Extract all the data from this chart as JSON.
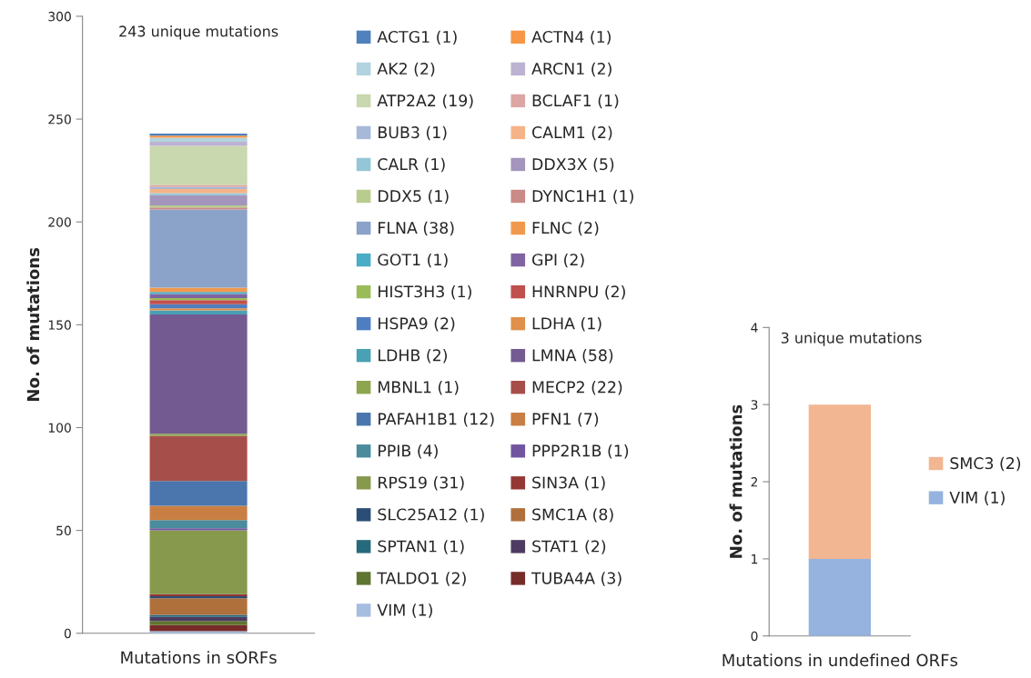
{
  "chart_data": [
    {
      "type": "bar",
      "stacked": true,
      "categories": [
        "Mutations in sORFs"
      ],
      "ylabel": "No. of mutations",
      "ylim": [
        0,
        300
      ],
      "yticks": [
        0,
        50,
        100,
        150,
        200,
        250,
        300
      ],
      "grid": false,
      "legend": "right",
      "annotations": [
        "243 unique mutations"
      ],
      "series": [
        {
          "name": "VIM (1)",
          "color": "#a6bde0",
          "values": [
            1
          ]
        },
        {
          "name": "TUBA4A (3)",
          "color": "#772c2a",
          "values": [
            3
          ]
        },
        {
          "name": "TALDO1 (2)",
          "color": "#5f7530",
          "values": [
            2
          ]
        },
        {
          "name": "STAT1 (2)",
          "color": "#4d3b62",
          "values": [
            2
          ]
        },
        {
          "name": "SPTAN1 (1)",
          "color": "#276a7c",
          "values": [
            1
          ]
        },
        {
          "name": "SMC1A (8)",
          "color": "#b0703c",
          "values": [
            8
          ]
        },
        {
          "name": "SLC25A12 (1)",
          "color": "#2c4d75",
          "values": [
            1
          ]
        },
        {
          "name": "SIN3A (1)",
          "color": "#953735",
          "values": [
            1
          ]
        },
        {
          "name": "RPS19 (31)",
          "color": "#86994c",
          "values": [
            31
          ]
        },
        {
          "name": "PPP2R1B (1)",
          "color": "#7155a0",
          "values": [
            1
          ]
        },
        {
          "name": "PPIB (4)",
          "color": "#4a8b9c",
          "values": [
            4
          ]
        },
        {
          "name": "PFN1 (7)",
          "color": "#c97f44",
          "values": [
            7
          ]
        },
        {
          "name": "PAFAH1B1 (12)",
          "color": "#4a76ad",
          "values": [
            12
          ]
        },
        {
          "name": "MECP2 (22)",
          "color": "#a64e49",
          "values": [
            22
          ]
        },
        {
          "name": "MBNL1 (1)",
          "color": "#8da64e",
          "values": [
            1
          ]
        },
        {
          "name": "LMNA (58)",
          "color": "#735b91",
          "values": [
            58
          ]
        },
        {
          "name": "LDHB (2)",
          "color": "#4aa0b5",
          "values": [
            2
          ]
        },
        {
          "name": "LDHA (1)",
          "color": "#e0904a",
          "values": [
            1
          ]
        },
        {
          "name": "HSPA9 (2)",
          "color": "#4f7ec0",
          "values": [
            2
          ]
        },
        {
          "name": "HNRNPU (2)",
          "color": "#c0504d",
          "values": [
            2
          ]
        },
        {
          "name": "HIST3H3 (1)",
          "color": "#9bbb59",
          "values": [
            1
          ]
        },
        {
          "name": "GPI (2)",
          "color": "#8064a2",
          "values": [
            2
          ]
        },
        {
          "name": "GOT1 (1)",
          "color": "#4bacc6",
          "values": [
            1
          ]
        },
        {
          "name": "FLNC (2)",
          "color": "#f0994e",
          "values": [
            2
          ]
        },
        {
          "name": "FLNA (38)",
          "color": "#8ba2c9",
          "values": [
            38
          ]
        },
        {
          "name": "DYNC1H1 (1)",
          "color": "#c98a88",
          "values": [
            1
          ]
        },
        {
          "name": "DDX5 (1)",
          "color": "#b8cc8e",
          "values": [
            1
          ]
        },
        {
          "name": "DDX3X (5)",
          "color": "#a395bb",
          "values": [
            5
          ]
        },
        {
          "name": "CALR (1)",
          "color": "#93c6d6",
          "values": [
            1
          ]
        },
        {
          "name": "CALM1 (2)",
          "color": "#f5b487",
          "values": [
            2
          ]
        },
        {
          "name": "BUB3 (1)",
          "color": "#a8b8d8",
          "values": [
            1
          ]
        },
        {
          "name": "BCLAF1 (1)",
          "color": "#dba6a4",
          "values": [
            1
          ]
        },
        {
          "name": "ATP2A2 (19)",
          "color": "#c9d8ae",
          "values": [
            19
          ]
        },
        {
          "name": "ARCN1 (2)",
          "color": "#bcb2d1",
          "values": [
            2
          ]
        },
        {
          "name": "AK2 (2)",
          "color": "#b2d3df",
          "values": [
            2
          ]
        },
        {
          "name": "ACTN4 (1)",
          "color": "#f79646",
          "values": [
            1
          ]
        },
        {
          "name": "ACTG1 (1)",
          "color": "#4f81bd",
          "values": [
            1
          ]
        }
      ]
    },
    {
      "type": "bar",
      "stacked": true,
      "categories": [
        "Mutations in undefined ORFs"
      ],
      "ylabel": "No. of mutations",
      "ylim": [
        0,
        4
      ],
      "yticks": [
        0,
        1,
        2,
        3,
        4
      ],
      "grid": false,
      "legend": "right",
      "annotations": [
        "3 unique mutations"
      ],
      "series": [
        {
          "name": "VIM (1)",
          "color": "#95b3de",
          "values": [
            1
          ]
        },
        {
          "name": "SMC3 (2)",
          "color": "#f2b693",
          "values": [
            2
          ]
        }
      ]
    }
  ]
}
